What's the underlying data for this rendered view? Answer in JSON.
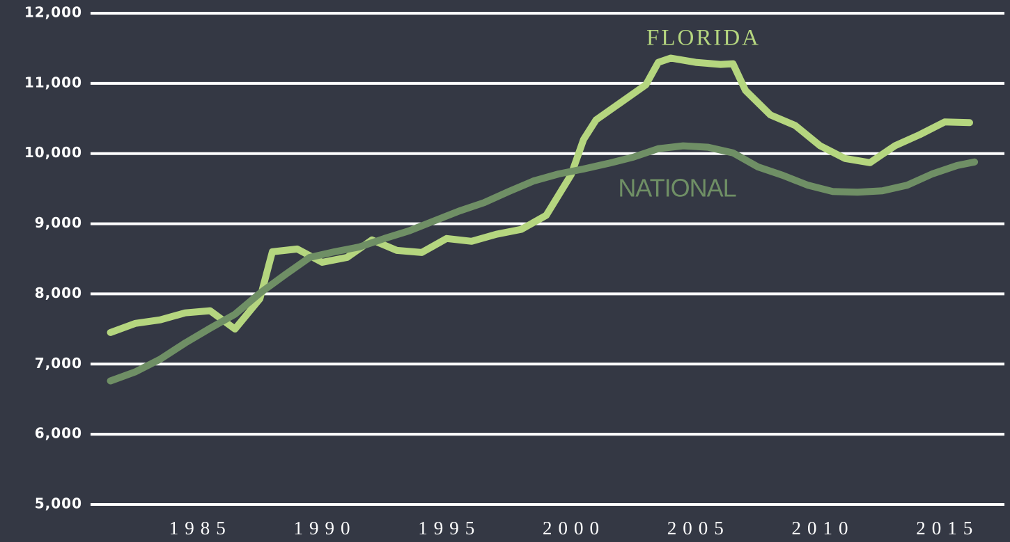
{
  "chart_data": {
    "type": "line",
    "xlim": [
      1980.7,
      2017.4
    ],
    "ylim": [
      5000,
      12000
    ],
    "xticks": [
      1985,
      1990,
      1995,
      2000,
      2005,
      2010,
      2015
    ],
    "yticks": [
      {
        "value": 5000,
        "label": "5,000"
      },
      {
        "value": 6000,
        "label": "6,000"
      },
      {
        "value": 7000,
        "label": "7,000"
      },
      {
        "value": 8000,
        "label": "8,000"
      },
      {
        "value": 9000,
        "label": "9,000"
      },
      {
        "value": 10000,
        "label": "10,000"
      },
      {
        "value": 11000,
        "label": "11,000"
      },
      {
        "value": 12000,
        "label": "12,000"
      }
    ],
    "grid": true,
    "series": [
      {
        "name": "FLORIDA",
        "color": "#b5d67f",
        "x": [
          1981.5,
          1982.5,
          1983.5,
          1984.5,
          1985.5,
          1986.5,
          1987.5,
          1988,
          1989,
          1990,
          1991,
          1992,
          1993,
          1994,
          1995,
          1996,
          1997,
          1998,
          1999,
          2000,
          2000.5,
          2001,
          2002,
          2003,
          2003.5,
          2004,
          2005,
          2006,
          2006.5,
          2007,
          2008,
          2009,
          2010,
          2011,
          2012,
          2013,
          2014,
          2015,
          2016
        ],
        "values": [
          7450,
          7580,
          7630,
          7730,
          7760,
          7500,
          7930,
          8600,
          8640,
          8450,
          8520,
          8770,
          8620,
          8590,
          8790,
          8750,
          8850,
          8920,
          9120,
          9700,
          10200,
          10480,
          10730,
          10980,
          11300,
          11360,
          11300,
          11270,
          11280,
          10900,
          10550,
          10400,
          10110,
          9930,
          9870,
          10110,
          10270,
          10450,
          10440
        ]
      },
      {
        "name": "NATIONAL",
        "color": "#6f8f65",
        "x": [
          1981.5,
          1982.5,
          1983.5,
          1984.5,
          1985.5,
          1986.5,
          1987.5,
          1988.5,
          1989.5,
          1990.5,
          1991.5,
          1992.5,
          1993.5,
          1994.5,
          1995.5,
          1996.5,
          1997.5,
          1998.5,
          1999.5,
          2000.5,
          2001.5,
          2002.5,
          2003.5,
          2004.5,
          2005.5,
          2006.5,
          2007.5,
          2008.5,
          2009.5,
          2010.5,
          2011.5,
          2012.5,
          2013.5,
          2014.5,
          2015.5,
          2016.2
        ],
        "values": [
          6760,
          6890,
          7070,
          7300,
          7510,
          7710,
          8010,
          8270,
          8520,
          8600,
          8670,
          8790,
          8900,
          9040,
          9180,
          9300,
          9460,
          9610,
          9710,
          9780,
          9860,
          9950,
          10070,
          10110,
          10090,
          10010,
          9810,
          9690,
          9550,
          9460,
          9450,
          9470,
          9550,
          9710,
          9830,
          9880
        ]
      }
    ]
  }
}
